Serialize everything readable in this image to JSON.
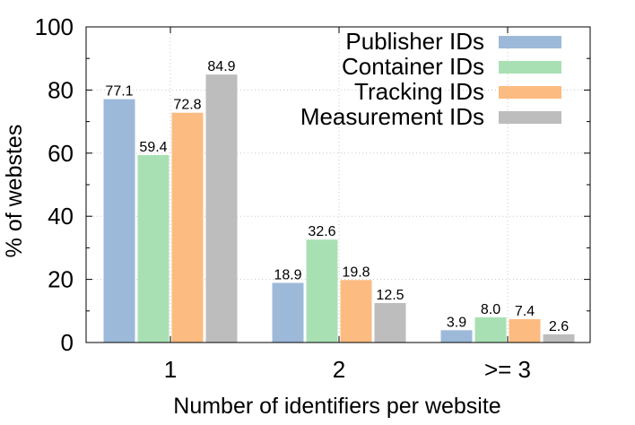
{
  "chart_data": {
    "type": "bar",
    "title": "",
    "xlabel": "Number of identifiers per website",
    "ylabel": "% of webstes",
    "categories": [
      "1",
      "2",
      ">= 3"
    ],
    "ylim": [
      0,
      100
    ],
    "yticks": [
      0,
      20,
      40,
      60,
      80,
      100
    ],
    "grid": true,
    "legend_position": "top-right",
    "series": [
      {
        "name": "Publisher IDs",
        "color": "#9db9d9",
        "values": [
          77.1,
          18.9,
          3.9
        ],
        "labels": [
          "77.1",
          "18.9",
          "3.9"
        ]
      },
      {
        "name": "Container IDs",
        "color": "#a8e0b4",
        "values": [
          59.4,
          32.6,
          8.0
        ],
        "labels": [
          "59.4",
          "32.6",
          "8.0"
        ]
      },
      {
        "name": "Tracking IDs",
        "color": "#fcbb80",
        "values": [
          72.8,
          19.8,
          7.4
        ],
        "labels": [
          "72.8",
          "19.8",
          "7.4"
        ]
      },
      {
        "name": "Measurement IDs",
        "color": "#bdbdbd",
        "values": [
          84.9,
          12.5,
          2.6
        ],
        "labels": [
          "84.9",
          "12.5",
          "2.6"
        ]
      }
    ]
  }
}
